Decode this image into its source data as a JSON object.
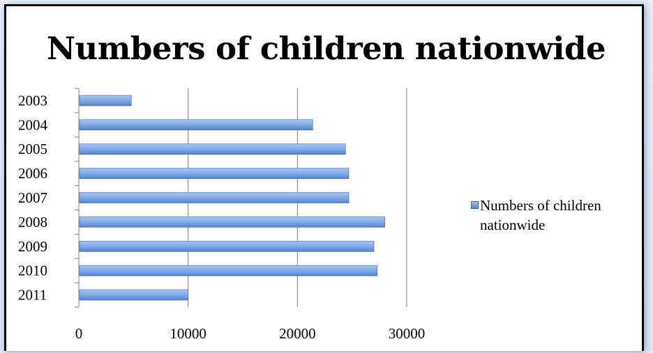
{
  "chart_data": {
    "type": "bar",
    "orientation": "horizontal",
    "title": "Numbers of children nationwide",
    "categories": [
      "2003",
      "2004",
      "2005",
      "2006",
      "2007",
      "2008",
      "2009",
      "2010",
      "2011"
    ],
    "series": [
      {
        "name": "Numbers of children nationwide",
        "values": [
          4800,
          21400,
          24400,
          24700,
          24700,
          28000,
          27000,
          27300,
          10000
        ]
      }
    ],
    "xticks": [
      "0",
      "10000",
      "20000",
      "30000"
    ],
    "xlim": [
      0,
      30000
    ],
    "grid": true,
    "legend_position": "right",
    "colors": {
      "bar_light": "#a9c6f1",
      "bar_dark": "#4f81d2",
      "bar_edge": "#3b66b3",
      "grid": "#7f7f7f"
    }
  }
}
